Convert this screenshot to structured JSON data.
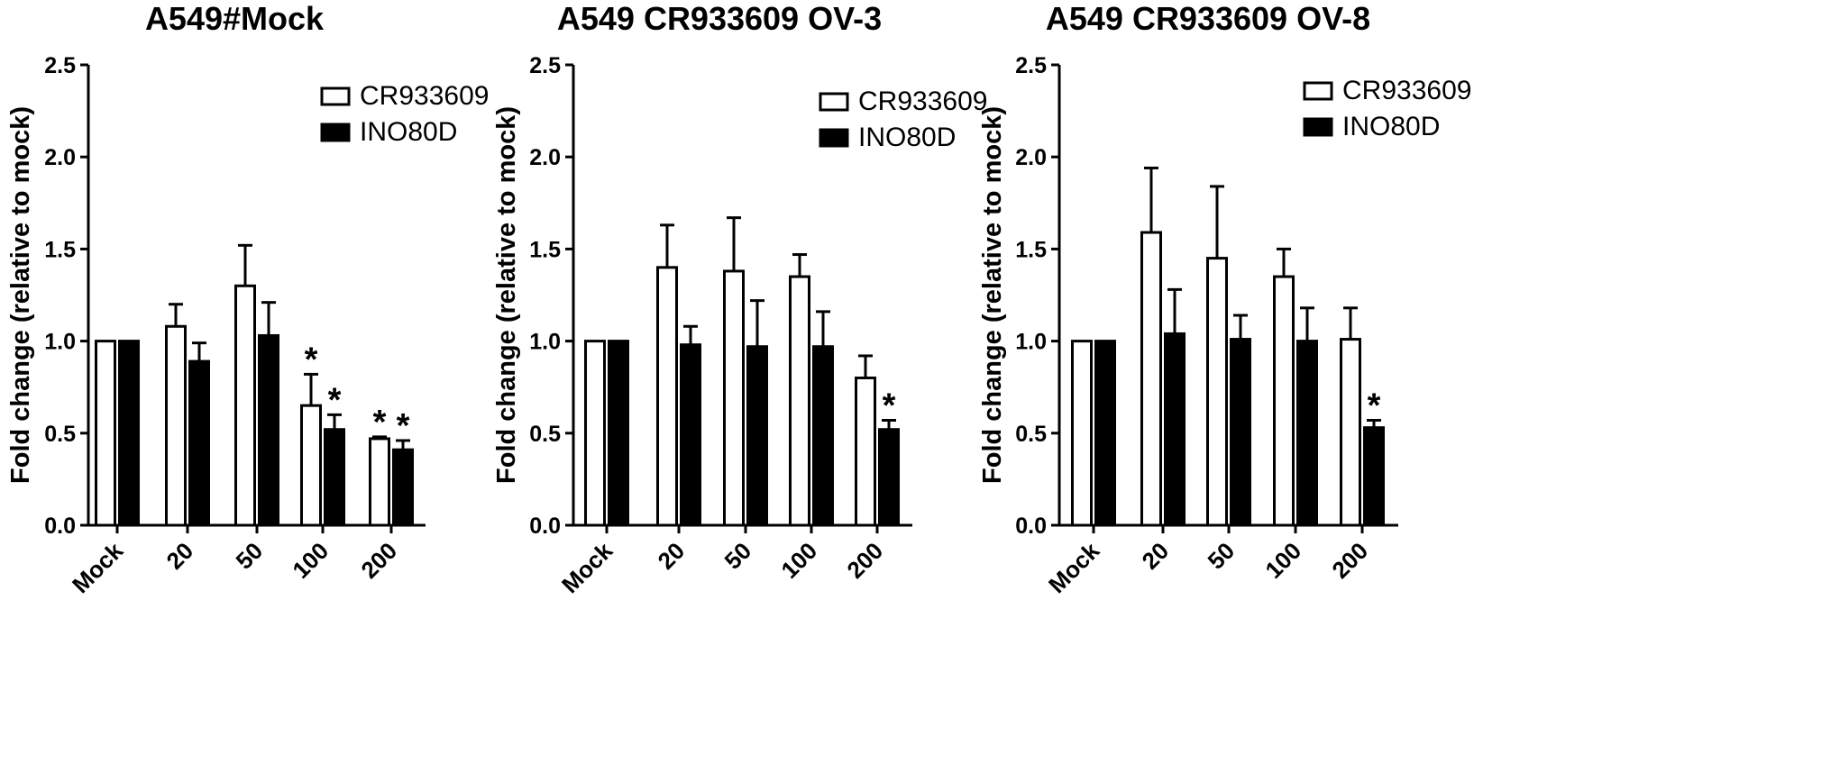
{
  "chart_data": [
    {
      "type": "bar",
      "title": "A549#Mock",
      "ylabel": "Fold change (relative to mock)",
      "xlabel": "",
      "ylim": [
        0,
        2.5
      ],
      "yticks": [
        "0.0",
        "0.5",
        "1.0",
        "1.5",
        "2.0",
        "2.5"
      ],
      "categories": [
        "Mock",
        "20",
        "50",
        "100",
        "200"
      ],
      "legend_position": "top-right",
      "series": [
        {
          "name": "CR933609",
          "fill": "#ffffff",
          "values": [
            1.0,
            1.08,
            1.3,
            0.65,
            0.47
          ],
          "errors": [
            0,
            0.12,
            0.22,
            0.17,
            0.01
          ],
          "sig": [
            "",
            "",
            "",
            "*",
            "*"
          ]
        },
        {
          "name": "INO80D",
          "fill": "#000000",
          "values": [
            1.0,
            0.89,
            1.03,
            0.52,
            0.41
          ],
          "errors": [
            0,
            0.1,
            0.18,
            0.08,
            0.05
          ],
          "sig": [
            "",
            "",
            "",
            "*",
            "*"
          ]
        }
      ]
    },
    {
      "type": "bar",
      "title": "A549 CR933609 OV-3",
      "ylabel": "Fold change (relative to mock)",
      "xlabel": "",
      "ylim": [
        0,
        2.5
      ],
      "yticks": [
        "0.0",
        "0.5",
        "1.0",
        "1.5",
        "2.0",
        "2.5"
      ],
      "categories": [
        "Mock",
        "20",
        "50",
        "100",
        "200"
      ],
      "legend_position": "top-right",
      "series": [
        {
          "name": "CR933609",
          "fill": "#ffffff",
          "values": [
            1.0,
            1.4,
            1.38,
            1.35,
            0.8
          ],
          "errors": [
            0,
            0.23,
            0.29,
            0.12,
            0.12
          ],
          "sig": [
            "",
            "",
            "",
            "",
            ""
          ]
        },
        {
          "name": "INO80D",
          "fill": "#000000",
          "values": [
            1.0,
            0.98,
            0.97,
            0.97,
            0.52
          ],
          "errors": [
            0,
            0.1,
            0.25,
            0.19,
            0.05
          ],
          "sig": [
            "",
            "",
            "",
            "",
            "*"
          ]
        }
      ]
    },
    {
      "type": "bar",
      "title": "A549 CR933609 OV-8",
      "ylabel": "Fold change (relative to mock)",
      "xlabel": "",
      "ylim": [
        0,
        2.5
      ],
      "yticks": [
        "0.0",
        "0.5",
        "1.0",
        "1.5",
        "2.0",
        "2.5"
      ],
      "categories": [
        "Mock",
        "20",
        "50",
        "100",
        "200"
      ],
      "legend_position": "top-right",
      "series": [
        {
          "name": "CR933609",
          "fill": "#ffffff",
          "values": [
            1.0,
            1.59,
            1.45,
            1.35,
            1.01
          ],
          "errors": [
            0,
            0.35,
            0.39,
            0.15,
            0.17
          ],
          "sig": [
            "",
            "",
            "",
            "",
            ""
          ]
        },
        {
          "name": "INO80D",
          "fill": "#000000",
          "values": [
            1.0,
            1.04,
            1.01,
            1.0,
            0.53
          ],
          "errors": [
            0,
            0.24,
            0.13,
            0.18,
            0.04
          ],
          "sig": [
            "",
            "",
            "",
            "",
            "*"
          ]
        }
      ]
    }
  ]
}
